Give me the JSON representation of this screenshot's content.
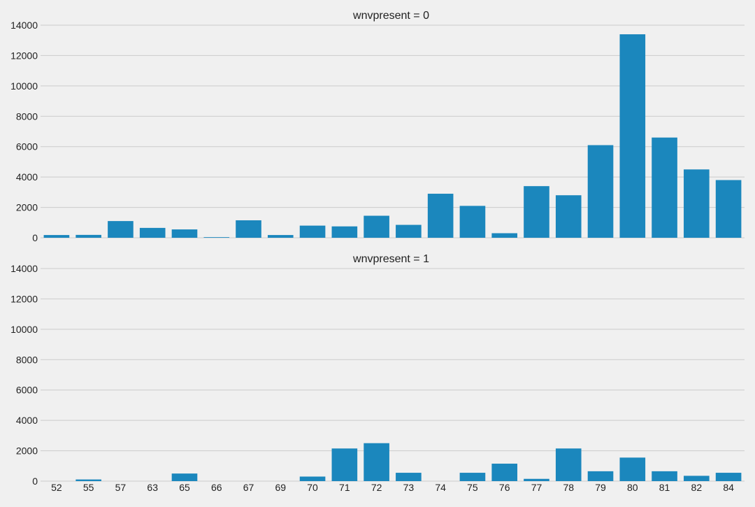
{
  "chart_data": {
    "type": "bar",
    "layout": "faceted-vertical",
    "categories": [
      "52",
      "55",
      "57",
      "63",
      "65",
      "66",
      "67",
      "69",
      "70",
      "71",
      "72",
      "73",
      "74",
      "75",
      "76",
      "77",
      "78",
      "79",
      "80",
      "81",
      "82",
      "84"
    ],
    "ylim": [
      0,
      14000
    ],
    "yticks": [
      0,
      2000,
      4000,
      6000,
      8000,
      10000,
      12000,
      14000
    ],
    "grid": true,
    "bar_color": "#1b87bd",
    "background_color": "#f0f0f0",
    "grid_color": "#cbcbcb",
    "panels": [
      {
        "title": "wnvpresent = 0",
        "values": [
          180,
          190,
          1100,
          650,
          550,
          40,
          1150,
          180,
          800,
          750,
          1450,
          850,
          2900,
          2100,
          300,
          3400,
          2800,
          6100,
          13400,
          6600,
          4500,
          3800
        ]
      },
      {
        "title": "wnvpresent = 1",
        "values": [
          0,
          110,
          0,
          0,
          500,
          0,
          0,
          0,
          300,
          2150,
          2500,
          550,
          0,
          550,
          1150,
          150,
          2150,
          650,
          1550,
          650,
          350,
          550
        ]
      }
    ]
  }
}
